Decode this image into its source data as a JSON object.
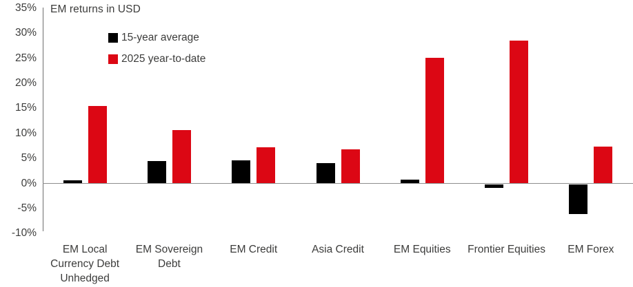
{
  "chart_data": {
    "type": "bar",
    "title": "EM returns in USD",
    "categories": [
      "EM Local\nCurrency Debt\nUnhedged",
      "EM Sovereign\nDebt",
      "EM Credit",
      "Asia Credit",
      "EM Equities",
      "Frontier Equities",
      "EM Forex"
    ],
    "series": [
      {
        "name": "15-year average",
        "color": "#000000",
        "values": [
          0.6,
          4.4,
          4.6,
          4.0,
          0.7,
          -0.7,
          -6.0
        ]
      },
      {
        "name": "2025 year-to-date",
        "color": "#dc0714",
        "values": [
          15.4,
          10.6,
          7.2,
          6.8,
          25.1,
          28.5,
          7.3
        ]
      }
    ],
    "unit": "%",
    "ylim": [
      -10,
      35
    ],
    "y_tick_step": 5,
    "y_tick_labels": [
      "35%",
      "30%",
      "25%",
      "20%",
      "15%",
      "10%",
      "5%",
      "0%",
      "-5%",
      "-10%"
    ],
    "grid": "off",
    "legend_position": "top-left-inside"
  }
}
